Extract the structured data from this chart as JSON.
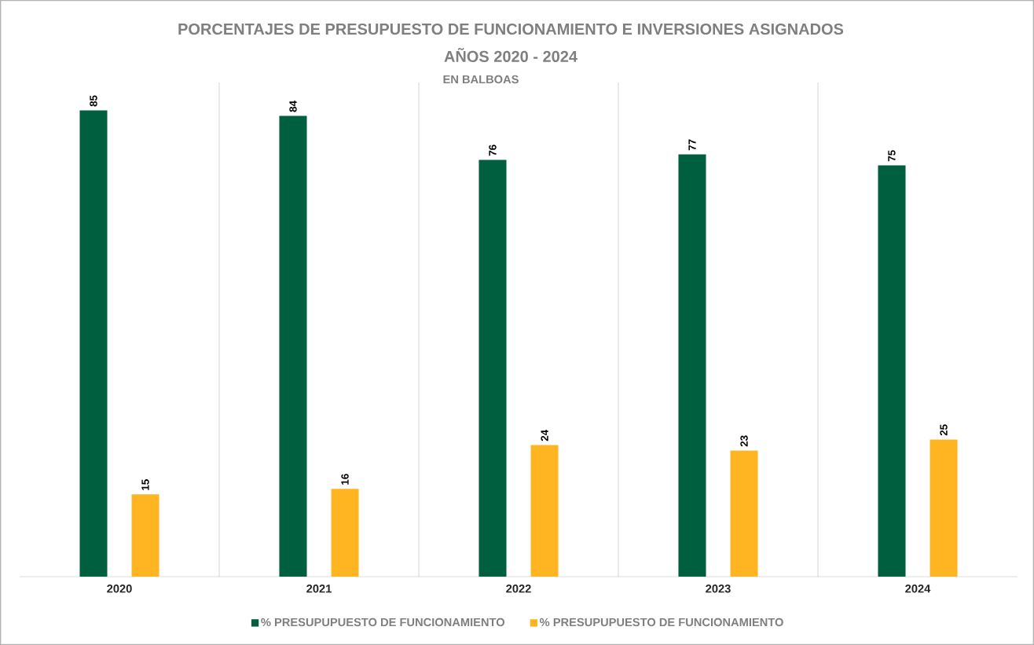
{
  "chart_data": {
    "type": "bar",
    "title": "PORCENTAJES DE PRESUPUESTO DE FUNCIONAMIENTO E INVERSIONES ASIGNADOS",
    "subtitle": "AÑOS 2020 - 2024",
    "annotations": [
      "EN BALBOAS"
    ],
    "categories": [
      "2020",
      "2021",
      "2022",
      "2023",
      "2024"
    ],
    "series": [
      {
        "name": "%   PRESUPUPUESTO DE FUNCIONAMIENTO",
        "color": "#005f3f",
        "values": [
          85,
          84,
          76,
          77,
          75
        ]
      },
      {
        "name": "%  PRESUPUPUESTO DE FUNCIONAMIENTO",
        "color": "#ffb521",
        "values": [
          15,
          16,
          24,
          23,
          25
        ]
      }
    ],
    "data_labels": true,
    "grid": "x",
    "legend": "bottom"
  }
}
